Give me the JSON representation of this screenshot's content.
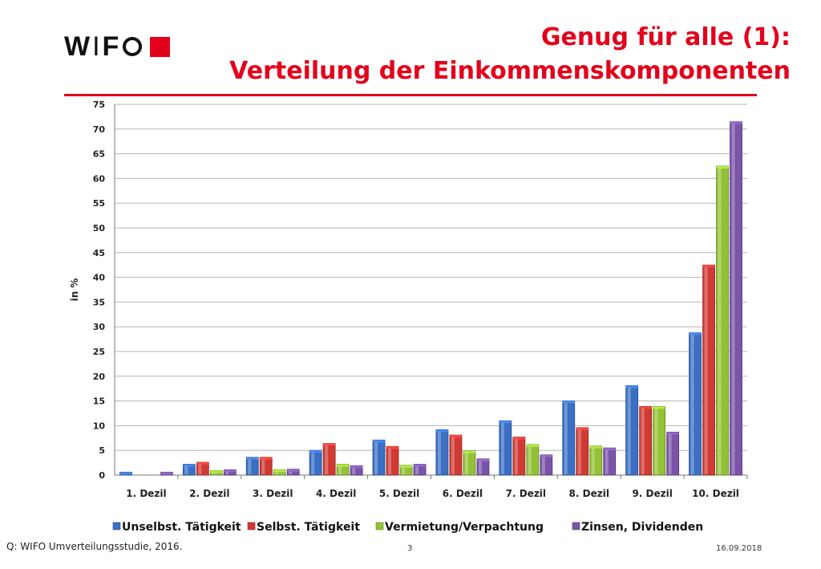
{
  "logo": {
    "text_left": "W",
    "text_mid": "I",
    "text_right": "F"
  },
  "title": {
    "line1": "Genug für alle (1):",
    "line2": "Verteilung der Einkommenskomponenten"
  },
  "chart_data": {
    "type": "bar",
    "categories": [
      "1. Dezil",
      "2. Dezil",
      "3. Dezil",
      "4. Dezil",
      "5. Dezil",
      "6. Dezil",
      "7. Dezil",
      "8. Dezil",
      "9. Dezil",
      "10. Dezil"
    ],
    "series": [
      {
        "name": "Unselbst. Tätigkeit",
        "color": "#3a6fc4",
        "values": [
          0.6,
          2.2,
          3.6,
          5.0,
          7.1,
          9.2,
          11.0,
          15.0,
          18.1,
          28.8
        ]
      },
      {
        "name": "Selbst. Tätigkeit",
        "color": "#cf3a33",
        "values": [
          0.0,
          2.6,
          3.6,
          6.4,
          5.8,
          8.1,
          7.7,
          9.6,
          13.9,
          42.5
        ]
      },
      {
        "name": "Vermietung/Verpachtung",
        "color": "#93c136",
        "values": [
          0.0,
          0.9,
          1.1,
          2.2,
          2.0,
          4.9,
          6.2,
          5.9,
          13.9,
          62.5
        ]
      },
      {
        "name": "Zinsen, Dividenden",
        "color": "#7a54a8",
        "values": [
          0.6,
          1.1,
          1.2,
          1.9,
          2.2,
          3.3,
          4.1,
          5.5,
          8.7,
          71.5
        ]
      }
    ],
    "ylabel": "in %",
    "xlabel": "",
    "ylim": [
      0,
      75
    ],
    "yticks": [
      0,
      5,
      10,
      15,
      20,
      25,
      30,
      35,
      40,
      45,
      50,
      55,
      60,
      65,
      70,
      75
    ],
    "grid": true,
    "legend_position": "bottom"
  },
  "footer": {
    "source": "Q: WIFO Umverteilungsstudie, 2016.",
    "page": "3",
    "date": "16.09.2018"
  }
}
